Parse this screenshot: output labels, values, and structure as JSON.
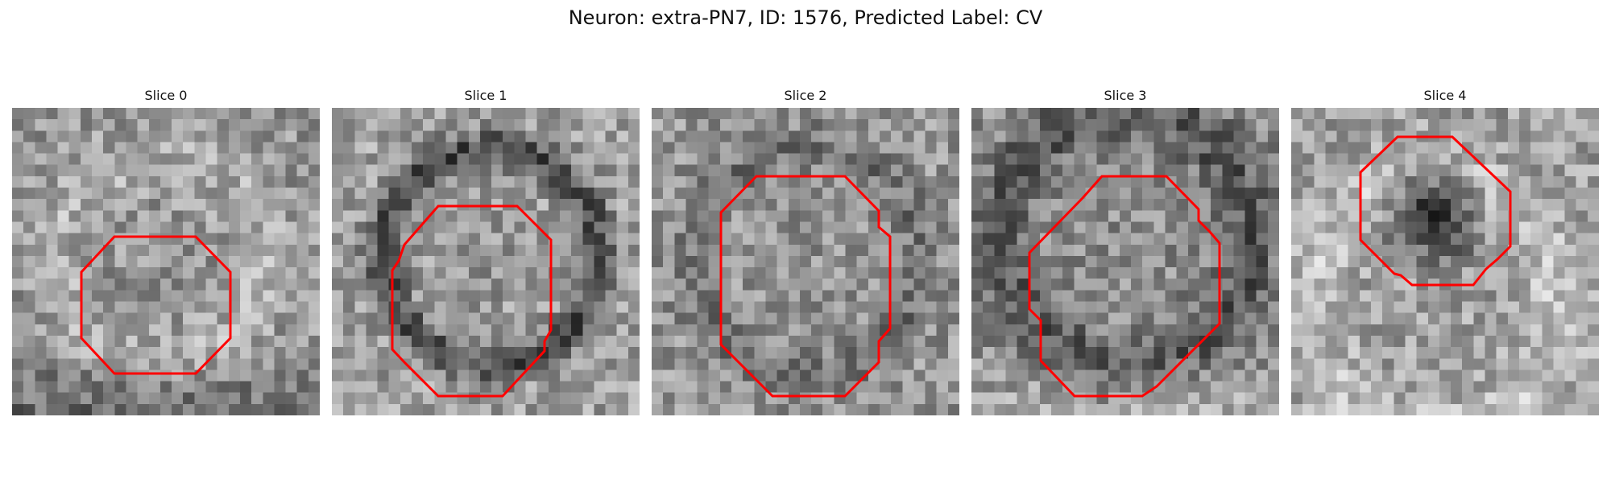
{
  "figure": {
    "title": "Neuron: extra-PN7, ID: 1576, Predicted Label: CV"
  },
  "colors": {
    "contour": "#ff0000",
    "background": "#ffffff"
  },
  "panels": [
    {
      "title": "Slice 0",
      "tone": "light-ring"
    },
    {
      "title": "Slice 1",
      "tone": "dark-ring"
    },
    {
      "title": "Slice 2",
      "tone": "mid-ring"
    },
    {
      "title": "Slice 3",
      "tone": "dark-top"
    },
    {
      "title": "Slice 4",
      "tone": "dark-blob"
    }
  ]
}
